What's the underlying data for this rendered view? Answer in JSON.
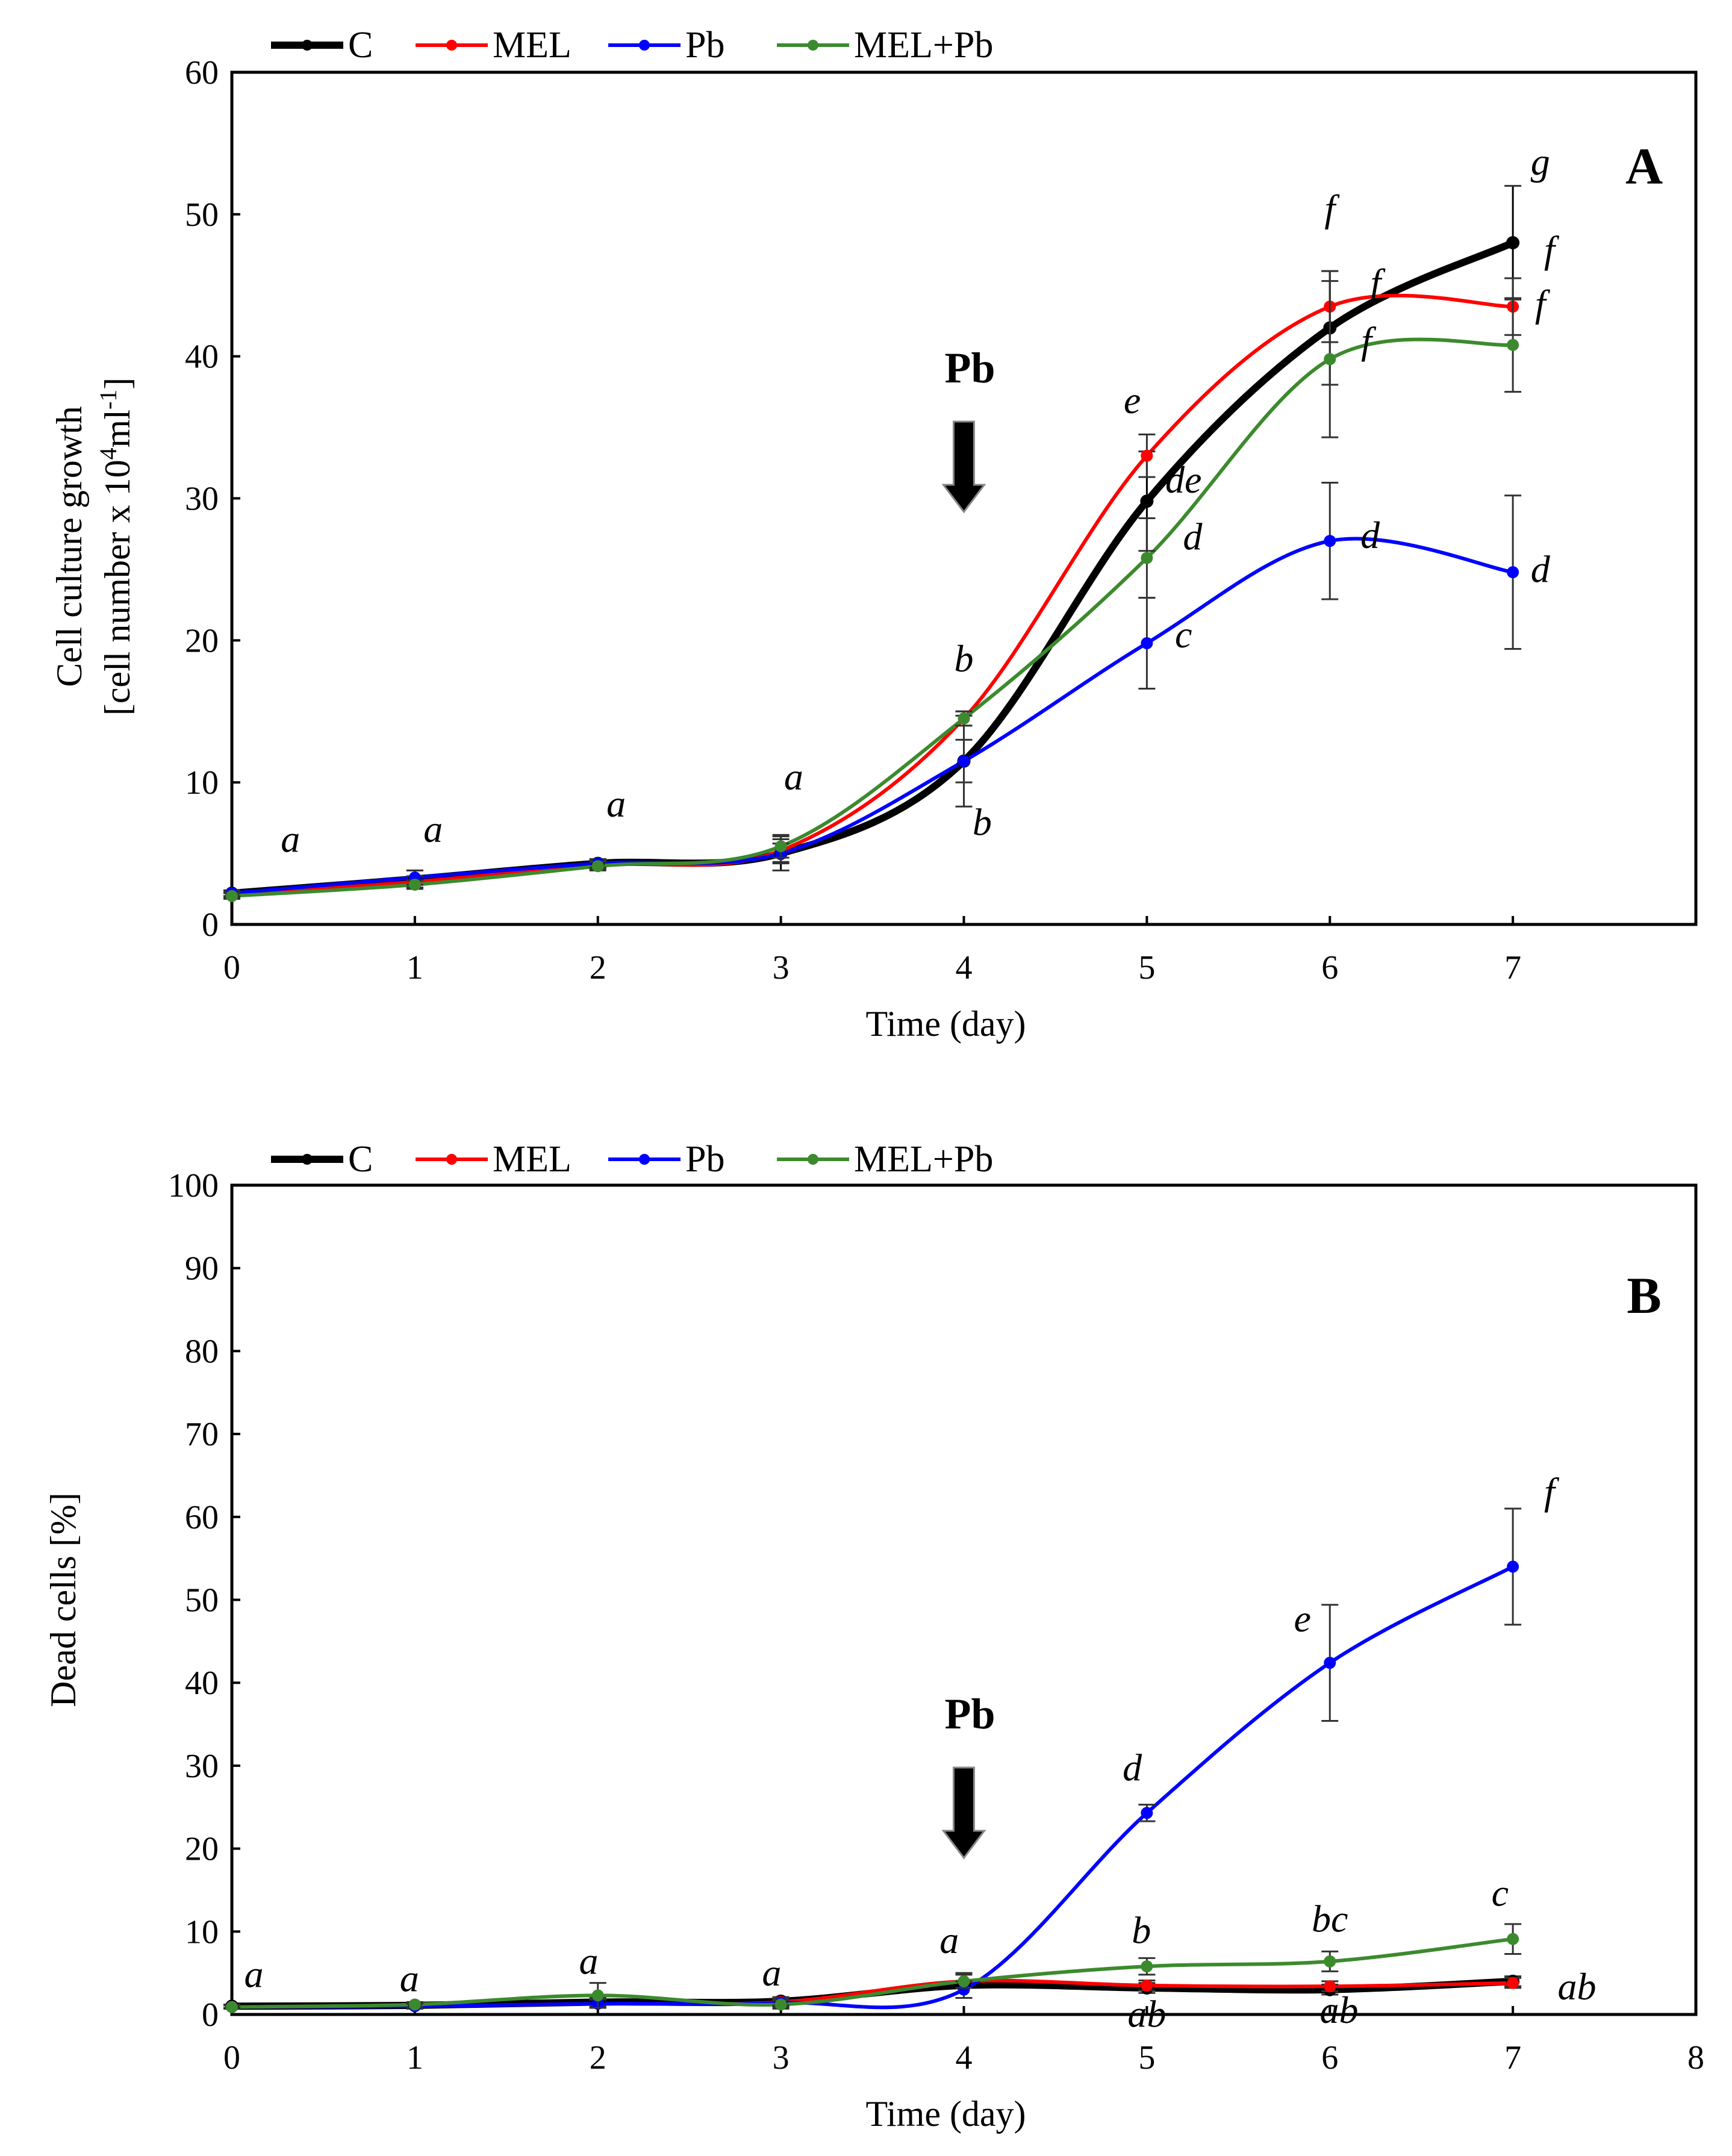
{
  "figure": {
    "panels": [
      "A",
      "B"
    ]
  },
  "chart_data": [
    {
      "type": "line",
      "panel": "A",
      "title": "",
      "xlabel": "Time (day)",
      "ylabel": "Cell culture growth",
      "ylabel2": "[cell number x 10",
      "ylabel2_sup": "4",
      "ylabel2_mid": "ml",
      "ylabel2_sup2": "-1",
      "ylabel2_end": "]",
      "xlim": [
        0,
        8
      ],
      "ylim": [
        0,
        60
      ],
      "xticks": [
        "0",
        "1",
        "2",
        "3",
        "4",
        "5",
        "6",
        "7"
      ],
      "yticks": [
        "0",
        "10",
        "20",
        "30",
        "40",
        "50",
        "60"
      ],
      "ytick_values": [
        0,
        10,
        20,
        30,
        40,
        50,
        60
      ],
      "x": [
        0,
        1,
        2,
        3,
        4,
        5,
        6,
        7
      ],
      "legend": "top-left",
      "series": [
        {
          "name": "C",
          "color": "#000000",
          "values": [
            2.2,
            3.2,
            4.3,
            5.0,
            11.5,
            29.8,
            42.0,
            48.0
          ],
          "errors": [
            0.2,
            0.6,
            0.3,
            1.2,
            1.5,
            3.5,
            4.0,
            4.0
          ]
        },
        {
          "name": "MEL",
          "color": "#ff0000",
          "values": [
            2.1,
            3.0,
            4.2,
            5.2,
            14.5,
            33.0,
            43.5,
            43.5
          ],
          "errors": [
            0.2,
            0.4,
            0.3,
            0.8,
            0.5,
            1.5,
            2.5,
            2.0
          ]
        },
        {
          "name": "Pb",
          "color": "#0000ff",
          "values": [
            2.2,
            3.3,
            4.3,
            5.0,
            11.5,
            19.8,
            27.0,
            24.8
          ],
          "errors": [
            0.2,
            0.5,
            0.3,
            0.7,
            3.2,
            3.2,
            4.1,
            5.4
          ]
        },
        {
          "name": "MEL+Pb",
          "color": "#3c8a2e",
          "values": [
            2.0,
            2.8,
            4.1,
            5.5,
            14.5,
            25.8,
            39.8,
            40.8
          ],
          "errors": [
            0.2,
            0.3,
            0.3,
            0.8,
            0.5,
            2.8,
            5.5,
            3.3
          ]
        }
      ],
      "annotations": [
        {
          "text": "a",
          "x": 0.32,
          "y": 5.1
        },
        {
          "text": "a",
          "x": 1.1,
          "y": 5.8
        },
        {
          "text": "a",
          "x": 2.1,
          "y": 7.6
        },
        {
          "text": "a",
          "x": 3.07,
          "y": 9.5
        },
        {
          "text": "b",
          "x": 4.0,
          "y": 17.8
        },
        {
          "text": "b",
          "x": 4.1,
          "y": 6.3
        },
        {
          "text": "e",
          "x": 4.92,
          "y": 36.0
        },
        {
          "text": "de",
          "x": 5.2,
          "y": 30.4
        },
        {
          "text": "d",
          "x": 5.25,
          "y": 26.4
        },
        {
          "text": "c",
          "x": 5.2,
          "y": 19.5
        },
        {
          "text": "f",
          "x": 6.0,
          "y": 49.5
        },
        {
          "text": "f",
          "x": 6.25,
          "y": 44.3
        },
        {
          "text": "f",
          "x": 6.2,
          "y": 40.2
        },
        {
          "text": "d",
          "x": 6.22,
          "y": 26.5
        },
        {
          "text": "g",
          "x": 7.15,
          "y": 52.8
        },
        {
          "text": "f",
          "x": 7.2,
          "y": 46.6
        },
        {
          "text": "f",
          "x": 7.15,
          "y": 42.8
        },
        {
          "text": "d",
          "x": 7.15,
          "y": 24.1
        }
      ],
      "pb_marker": {
        "label": "Pb",
        "x": 4
      },
      "panel_label": "A"
    },
    {
      "type": "line",
      "panel": "B",
      "title": "",
      "xlabel": "Time (day)",
      "ylabel": "Dead cells [%]",
      "xlim": [
        0,
        8
      ],
      "ylim": [
        0,
        100
      ],
      "xticks": [
        "0",
        "1",
        "2",
        "3",
        "4",
        "5",
        "6",
        "7",
        "8"
      ],
      "yticks": [
        "0",
        "10",
        "20",
        "30",
        "40",
        "50",
        "60",
        "70",
        "80",
        "90",
        "100"
      ],
      "ytick_values": [
        0,
        10,
        20,
        30,
        40,
        50,
        60,
        70,
        80,
        90,
        100
      ],
      "x": [
        0,
        1,
        2,
        3,
        4,
        5,
        6,
        7
      ],
      "legend": "top-left",
      "series": [
        {
          "name": "C",
          "color": "#000000",
          "values": [
            1.0,
            1.1,
            1.5,
            1.6,
            3.5,
            3.2,
            3.0,
            4.0
          ],
          "errors": [
            0.2,
            0.3,
            0.5,
            0.5,
            1.5,
            0.6,
            0.6,
            0.6
          ]
        },
        {
          "name": "MEL",
          "color": "#ff0000",
          "values": [
            0.9,
            1.0,
            1.3,
            1.5,
            4.0,
            3.5,
            3.4,
            3.8
          ],
          "errors": [
            0.2,
            0.3,
            0.5,
            0.5,
            0.8,
            0.6,
            0.6,
            0.6
          ]
        },
        {
          "name": "Pb",
          "color": "#0000ff",
          "values": [
            0.9,
            1.0,
            1.3,
            1.4,
            3.0,
            24.3,
            42.4,
            54.0
          ],
          "errors": [
            0.2,
            0.3,
            0.5,
            0.5,
            1.0,
            1.0,
            7.0,
            7.0
          ]
        },
        {
          "name": "MEL+Pb",
          "color": "#3c8a2e",
          "values": [
            0.9,
            1.2,
            2.3,
            1.2,
            4.0,
            5.8,
            6.4,
            9.1
          ],
          "errors": [
            0.2,
            0.3,
            1.5,
            0.5,
            0.8,
            1.0,
            1.2,
            1.8
          ]
        }
      ],
      "annotations": [
        {
          "text": "a",
          "x": 0.12,
          "y": 3.3
        },
        {
          "text": "a",
          "x": -0.03,
          "y": 2.8,
          "dx": 1.0
        },
        {
          "text": "a",
          "x": 1.95,
          "y": 4.9
        },
        {
          "text": "a",
          "x": 2.95,
          "y": 3.5
        },
        {
          "text": "a",
          "x": 3.92,
          "y": 7.4
        },
        {
          "text": "d",
          "x": 4.92,
          "y": 28.2
        },
        {
          "text": "b",
          "x": 4.97,
          "y": 8.6
        },
        {
          "text": "ab",
          "x": 5.0,
          "y": -1.5
        },
        {
          "text": "e",
          "x": 5.85,
          "y": 46.2
        },
        {
          "text": "bc",
          "x": 6.0,
          "y": 10.0
        },
        {
          "text": "ab",
          "x": 6.05,
          "y": -1.0
        },
        {
          "text": "f",
          "x": 7.2,
          "y": 61.5
        },
        {
          "text": "c",
          "x": 6.93,
          "y": 13.1
        },
        {
          "text": "ab",
          "x": 7.35,
          "y": 1.8
        }
      ],
      "pb_marker": {
        "label": "Pb",
        "x": 4
      },
      "panel_label": "B"
    }
  ]
}
